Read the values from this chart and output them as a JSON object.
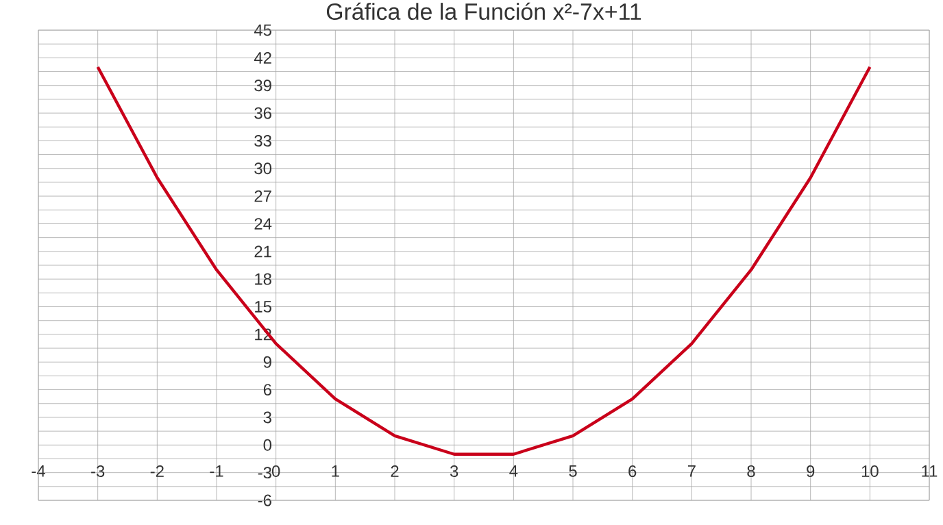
{
  "chart_data": {
    "type": "line",
    "title": "Gráfica de la Función x²-7x+11",
    "x": [
      -3,
      -2,
      -1,
      0,
      1,
      2,
      3,
      4,
      5,
      6,
      7,
      8,
      9,
      10
    ],
    "series": [
      {
        "color": "#c9001a",
        "values": [
          41,
          29,
          19,
          11,
          5,
          1,
          -1,
          -1,
          1,
          5,
          11,
          19,
          29,
          41
        ]
      }
    ],
    "xlim": [
      -4,
      11
    ],
    "ylim": [
      -6,
      45
    ],
    "xticks": [
      -4,
      -3,
      -2,
      -1,
      0,
      1,
      2,
      3,
      4,
      5,
      6,
      7,
      8,
      9,
      10,
      11
    ],
    "yticks": [
      -6,
      -3,
      0,
      3,
      6,
      9,
      12,
      15,
      18,
      21,
      24,
      27,
      30,
      33,
      36,
      39,
      42,
      45
    ],
    "grid": true,
    "marker": "none",
    "line_style": "solid"
  }
}
